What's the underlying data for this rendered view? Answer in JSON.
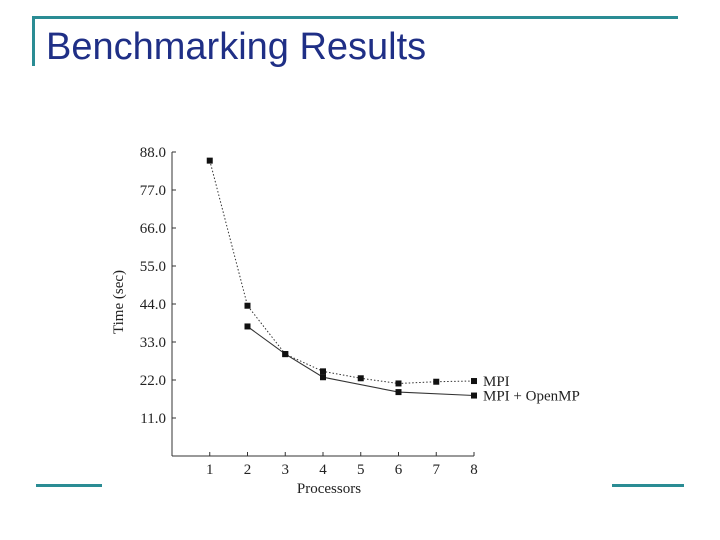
{
  "slide": {
    "title": "Benchmarking Results",
    "colors": {
      "accent": "#2a8c94",
      "title": "#1f2f86"
    }
  },
  "chart_data": {
    "type": "line",
    "title": "",
    "xlabel": "Processors",
    "ylabel": "Time (sec)",
    "x_ticks": [
      "1",
      "2",
      "3",
      "4",
      "5",
      "6",
      "7",
      "8"
    ],
    "y_ticks": [
      "88.0",
      "77.0",
      "66.0",
      "55.0",
      "44.0",
      "33.0",
      "22.0",
      "11.0"
    ],
    "xlim": [
      0,
      8
    ],
    "ylim": [
      0,
      88
    ],
    "grid": false,
    "legend_position": "right-end-of-lines",
    "series": [
      {
        "name": "MPI",
        "style": "dotted",
        "points": [
          [
            1,
            85.5
          ],
          [
            2,
            43.5
          ],
          [
            3,
            29.5
          ],
          [
            4,
            24.5
          ],
          [
            5,
            22.5
          ],
          [
            6,
            21
          ],
          [
            7,
            21.5
          ],
          [
            8,
            21.7
          ]
        ]
      },
      {
        "name": "MPI + OpenMP",
        "style": "solid",
        "points": [
          [
            2,
            37.5
          ],
          [
            3,
            29.5
          ],
          [
            4,
            22.8
          ],
          [
            6,
            18.5
          ],
          [
            8,
            17.5
          ]
        ]
      }
    ]
  }
}
